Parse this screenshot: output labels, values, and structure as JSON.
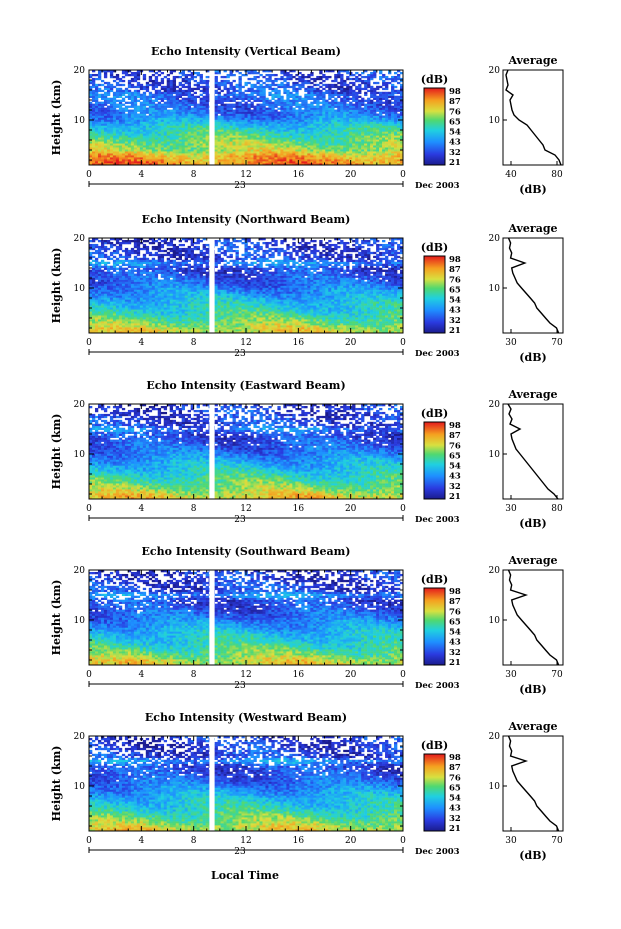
{
  "figure": {
    "bottom_xlabel": "Local Time",
    "cbar_unit": "(dB)",
    "cbar_ticks": [
      "98",
      "87",
      "76",
      "65",
      "54",
      "43",
      "32",
      "21"
    ],
    "date_label": "Dec 2003",
    "day_label": "23",
    "time_ticks": [
      "0",
      "4",
      "8",
      "12",
      "16",
      "20",
      "0"
    ],
    "avg_title": "Average",
    "avg_xlabel": "(dB)"
  },
  "chart_data": [
    {
      "type": "heatmap",
      "title": "Echo Intensity (Vertical Beam)",
      "ylabel": "Height (km)",
      "xlabel": "Local Time",
      "x_range_hours": [
        0,
        24
      ],
      "y_range_km": [
        1,
        20
      ],
      "y_ticks": [
        "20",
        "10"
      ],
      "colorbar": {
        "label": "(dB)",
        "range": [
          21,
          98
        ],
        "ticks": [
          "98",
          "87",
          "76",
          "65",
          "54",
          "43",
          "32",
          "21"
        ]
      },
      "data_gap_hours": [
        9.2,
        9.6
      ],
      "profile": {
        "title": "Average",
        "xlabel": "(dB)",
        "x_ticks": [
          "40",
          "80"
        ],
        "xlim": [
          30,
          90
        ],
        "height_km": [
          1,
          2,
          3,
          4,
          5,
          6,
          7,
          8,
          9,
          10,
          11,
          12,
          13,
          14,
          15,
          16,
          17,
          18,
          19,
          20
        ],
        "db": [
          88,
          86,
          82,
          72,
          70,
          66,
          62,
          58,
          54,
          46,
          41,
          39,
          38,
          37,
          40,
          33,
          35,
          34,
          33,
          35
        ]
      }
    },
    {
      "type": "heatmap",
      "title": "Echo Intensity (Northward Beam)",
      "ylabel": "Height (km)",
      "xlabel": "Local Time",
      "x_range_hours": [
        0,
        24
      ],
      "y_range_km": [
        1,
        20
      ],
      "y_ticks": [
        "20",
        "10"
      ],
      "colorbar": {
        "label": "(dB)",
        "range": [
          21,
          98
        ],
        "ticks": [
          "98",
          "87",
          "76",
          "65",
          "54",
          "43",
          "32",
          "21"
        ]
      },
      "data_gap_hours": [
        9.2,
        9.6
      ],
      "profile": {
        "title": "Average",
        "xlabel": "(dB)",
        "x_ticks": [
          "30",
          "70"
        ],
        "xlim": [
          25,
          80
        ],
        "height_km": [
          1,
          2,
          3,
          4,
          5,
          6,
          7,
          8,
          9,
          10,
          11,
          12,
          13,
          14,
          15,
          16,
          17,
          18,
          19,
          20
        ],
        "db": [
          76,
          74,
          68,
          64,
          60,
          56,
          54,
          50,
          46,
          42,
          38,
          36,
          34,
          33,
          45,
          32,
          33,
          31,
          32,
          30
        ]
      }
    },
    {
      "type": "heatmap",
      "title": "Echo Intensity (Eastward Beam)",
      "ylabel": "Height (km)",
      "xlabel": "Local Time",
      "x_range_hours": [
        0,
        24
      ],
      "y_range_km": [
        1,
        20
      ],
      "y_ticks": [
        "20",
        "10"
      ],
      "colorbar": {
        "label": "(dB)",
        "range": [
          21,
          98
        ],
        "ticks": [
          "98",
          "87",
          "76",
          "65",
          "54",
          "43",
          "32",
          "21"
        ]
      },
      "data_gap_hours": [
        9.2,
        9.6
      ],
      "profile": {
        "title": "Average",
        "xlabel": "(dB)",
        "x_ticks": [
          "30",
          "80"
        ],
        "xlim": [
          25,
          85
        ],
        "height_km": [
          1,
          2,
          3,
          4,
          5,
          6,
          7,
          8,
          9,
          10,
          11,
          12,
          13,
          14,
          15,
          16,
          17,
          18,
          19,
          20
        ],
        "db": [
          80,
          76,
          70,
          66,
          62,
          58,
          54,
          50,
          46,
          42,
          38,
          36,
          34,
          33,
          42,
          32,
          34,
          31,
          33,
          30
        ]
      }
    },
    {
      "type": "heatmap",
      "title": "Echo Intensity (Southward Beam)",
      "ylabel": "Height (km)",
      "xlabel": "Local Time",
      "x_range_hours": [
        0,
        24
      ],
      "y_range_km": [
        1,
        20
      ],
      "y_ticks": [
        "20",
        "10"
      ],
      "colorbar": {
        "label": "(dB)",
        "range": [
          21,
          98
        ],
        "ticks": [
          "98",
          "87",
          "76",
          "65",
          "54",
          "43",
          "32",
          "21"
        ]
      },
      "data_gap_hours": [
        9.2,
        9.6
      ],
      "profile": {
        "title": "Average",
        "xlabel": "(dB)",
        "x_ticks": [
          "30",
          "70"
        ],
        "xlim": [
          25,
          80
        ],
        "height_km": [
          1,
          2,
          3,
          4,
          5,
          6,
          7,
          8,
          9,
          10,
          11,
          12,
          13,
          14,
          15,
          16,
          17,
          18,
          19,
          20
        ],
        "db": [
          76,
          74,
          68,
          64,
          60,
          56,
          54,
          50,
          46,
          42,
          38,
          36,
          34,
          33,
          46,
          32,
          33,
          31,
          32,
          30
        ]
      }
    },
    {
      "type": "heatmap",
      "title": "Echo Intensity (Westward Beam)",
      "ylabel": "Height (km)",
      "xlabel": "Local Time",
      "x_range_hours": [
        0,
        24
      ],
      "y_range_km": [
        1,
        20
      ],
      "y_ticks": [
        "20",
        "10"
      ],
      "colorbar": {
        "label": "(dB)",
        "range": [
          21,
          98
        ],
        "ticks": [
          "98",
          "87",
          "76",
          "65",
          "54",
          "43",
          "32",
          "21"
        ]
      },
      "data_gap_hours": [
        9.2,
        9.6
      ],
      "profile": {
        "title": "Average",
        "xlabel": "(dB)",
        "x_ticks": [
          "30",
          "70"
        ],
        "xlim": [
          25,
          80
        ],
        "height_km": [
          1,
          2,
          3,
          4,
          5,
          6,
          7,
          8,
          9,
          10,
          11,
          12,
          13,
          14,
          15,
          16,
          17,
          18,
          19,
          20
        ],
        "db": [
          76,
          74,
          68,
          64,
          60,
          56,
          54,
          50,
          46,
          42,
          38,
          36,
          34,
          33,
          46,
          32,
          33,
          31,
          32,
          30
        ]
      }
    }
  ]
}
